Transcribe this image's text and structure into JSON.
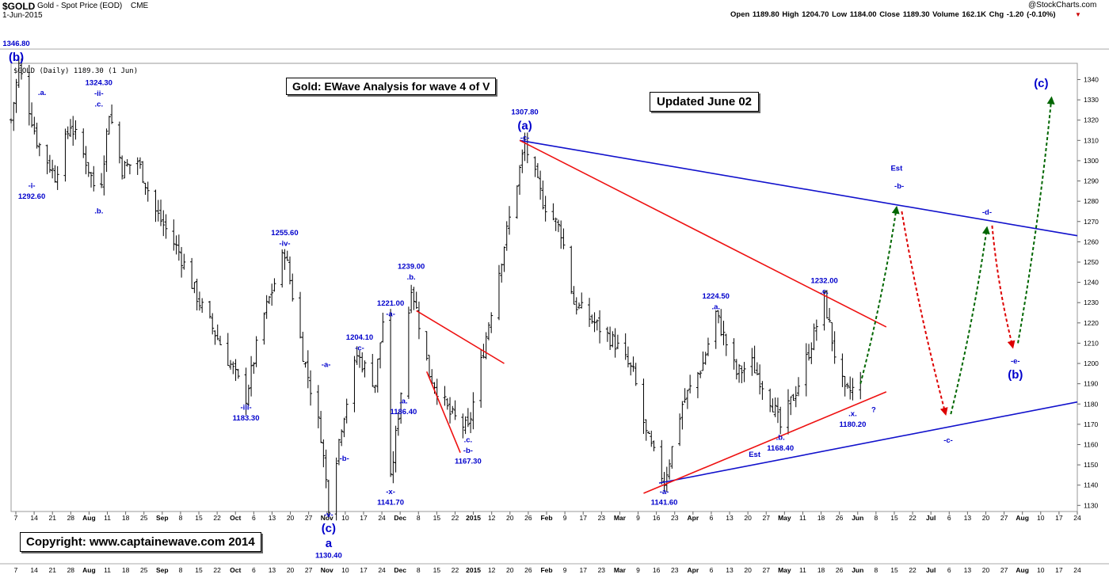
{
  "header": {
    "symbol": "$GOLD",
    "description": "Gold - Spot Price (EOD)",
    "exchange": "CME",
    "date": "1-Jun-2015",
    "brand": "@StockCharts.com",
    "stats": "Open 1189.80  High 1204.70  Low 1184.00  Close 1189.30  Volume 162.1K  Chg -1.20 (-0.10%)",
    "down_marker": "▼",
    "legend": "$GOLD (Daily) 1189.30 (1 Jun)"
  },
  "textboxes": {
    "title": "Gold: EWave Analysis for wave 4 of V",
    "updated": "Updated June 02",
    "copyright": "Copyright:    www.captainewave.com 2014"
  },
  "colors": {
    "candles": "#000000",
    "wave_labels": "#0000cc",
    "red_lines": "#ee1111",
    "blue_lines": "#1111cc",
    "projection_up": "#006600",
    "projection_down": "#dd0000"
  },
  "chart_data": {
    "type": "ohlc",
    "ylim": [
      1127,
      1348
    ],
    "yticks": [
      1130,
      1140,
      1150,
      1160,
      1170,
      1180,
      1190,
      1200,
      1210,
      1220,
      1230,
      1240,
      1250,
      1260,
      1270,
      1280,
      1290,
      1300,
      1310,
      1320,
      1330,
      1340
    ],
    "xticks": [
      "7",
      "14",
      "21",
      "28",
      "Aug",
      "11",
      "18",
      "25",
      "Sep",
      "8",
      "15",
      "22",
      "Oct",
      "6",
      "13",
      "20",
      "27",
      "Nov",
      "10",
      "17",
      "24",
      "Dec",
      "8",
      "15",
      "22",
      "2015",
      "12",
      "20",
      "26",
      "Feb",
      "9",
      "17",
      "23",
      "Mar",
      "9",
      "16",
      "23",
      "Apr",
      "6",
      "13",
      "20",
      "27",
      "May",
      "11",
      "18",
      "26",
      "Jun",
      "8",
      "15",
      "22",
      "Jul",
      "6",
      "13",
      "20",
      "27",
      "Aug",
      "10",
      "17",
      "24"
    ],
    "price_path": [
      [
        "2014-07-07",
        1320
      ],
      [
        "2014-07-10",
        1346.8
      ],
      [
        "2014-07-17",
        1310
      ],
      [
        "2014-07-24",
        1292.6
      ],
      [
        "2014-07-30",
        1318
      ],
      [
        "2014-08-05",
        1300
      ],
      [
        "2014-08-10",
        1280
      ],
      [
        "2014-08-14",
        1324.3
      ],
      [
        "2014-08-19",
        1296
      ],
      [
        "2014-08-25",
        1300
      ],
      [
        "2014-09-01",
        1275
      ],
      [
        "2014-09-10",
        1255
      ],
      [
        "2014-09-18",
        1230
      ],
      [
        "2014-09-26",
        1210
      ],
      [
        "2014-10-06",
        1183.3
      ],
      [
        "2014-10-12",
        1220
      ],
      [
        "2014-10-21",
        1255.6
      ],
      [
        "2014-10-28",
        1205
      ],
      [
        "2014-11-04",
        1165
      ],
      [
        "2014-11-07",
        1130.4
      ],
      [
        "2014-11-12",
        1170
      ],
      [
        "2014-11-18",
        1204.1
      ],
      [
        "2014-11-25",
        1190
      ],
      [
        "2014-11-28",
        1221
      ],
      [
        "2014-12-01",
        1141.7
      ],
      [
        "2014-12-05",
        1186.4
      ],
      [
        "2014-12-09",
        1239
      ],
      [
        "2014-12-16",
        1195
      ],
      [
        "2014-12-24",
        1175
      ],
      [
        "2014-12-31",
        1167.3
      ],
      [
        "2015-01-08",
        1220
      ],
      [
        "2015-01-15",
        1265
      ],
      [
        "2015-01-22",
        1307.8
      ],
      [
        "2015-01-29",
        1280
      ],
      [
        "2015-02-05",
        1265
      ],
      [
        "2015-02-10",
        1230
      ],
      [
        "2015-02-18",
        1220
      ],
      [
        "2015-02-26",
        1210
      ],
      [
        "2015-03-05",
        1195
      ],
      [
        "2015-03-10",
        1165
      ],
      [
        "2015-03-17",
        1141.6
      ],
      [
        "2015-03-24",
        1180
      ],
      [
        "2015-04-01",
        1200
      ],
      [
        "2015-04-06",
        1224.5
      ],
      [
        "2015-04-14",
        1195
      ],
      [
        "2015-04-20",
        1200
      ],
      [
        "2015-04-28",
        1180
      ],
      [
        "2015-05-01",
        1168.4
      ],
      [
        "2015-05-08",
        1190
      ],
      [
        "2015-05-13",
        1210
      ],
      [
        "2015-05-18",
        1232
      ],
      [
        "2015-05-22",
        1205
      ],
      [
        "2015-05-26",
        1185
      ],
      [
        "2015-06-01",
        1189.3
      ]
    ],
    "wave_labels": [
      {
        "date": "2014-07-09",
        "price": 1346.8,
        "lines": [
          "1346.80",
          "(b)"
        ],
        "pos": "above",
        "big": true
      },
      {
        "date": "2014-07-19",
        "price": 1330,
        "lines": [
          ".a."
        ],
        "pos": "above"
      },
      {
        "date": "2014-07-15",
        "price": 1292.6,
        "lines": [
          "-i-",
          "1292.60"
        ],
        "pos": "below"
      },
      {
        "date": "2014-08-10",
        "price": 1324.3,
        "lines": [
          "1324.30",
          "-ii-",
          ".c."
        ],
        "pos": "above"
      },
      {
        "date": "2014-08-10",
        "price": 1280,
        "lines": [
          ".b."
        ],
        "pos": "below"
      },
      {
        "date": "2014-10-06",
        "price": 1183.3,
        "lines": [
          "-iii-",
          "1183.30"
        ],
        "pos": "below"
      },
      {
        "date": "2014-10-21",
        "price": 1255.6,
        "lines": [
          "1255.60",
          "-iv-"
        ],
        "pos": "above"
      },
      {
        "date": "2014-11-07",
        "price": 1130.4,
        "lines": [
          "-v-",
          "(c)",
          "a",
          "1130.40"
        ],
        "pos": "below",
        "big": true
      },
      {
        "date": "2014-11-06",
        "price": 1196,
        "lines": [
          "-a-"
        ],
        "pos": "above"
      },
      {
        "date": "2014-11-10",
        "price": 1152,
        "lines": [
          "-b-"
        ],
        "pos": "right"
      },
      {
        "date": "2014-11-19",
        "price": 1204.1,
        "lines": [
          "1204.10",
          "-c-"
        ],
        "pos": "above"
      },
      {
        "date": "2014-12-01",
        "price": 1221,
        "lines": [
          "1221.00",
          "-a-"
        ],
        "pos": "above"
      },
      {
        "date": "2014-12-01",
        "price": 1141.7,
        "lines": [
          "-x-",
          "1141.70"
        ],
        "pos": "below"
      },
      {
        "date": "2014-12-06",
        "price": 1186.4,
        "lines": [
          ".a.",
          "1186.40"
        ],
        "pos": "below"
      },
      {
        "date": "2014-12-09",
        "price": 1239,
        "lines": [
          "1239.00",
          ".b."
        ],
        "pos": "above"
      },
      {
        "date": "2014-12-31",
        "price": 1167.3,
        "lines": [
          ".c.",
          "-b-",
          "1167.30"
        ],
        "pos": "below"
      },
      {
        "date": "2015-01-22",
        "price": 1307.8,
        "lines": [
          "1307.80",
          "(a)",
          "-c-"
        ],
        "pos": "above",
        "big": true
      },
      {
        "date": "2015-03-17",
        "price": 1141.6,
        "lines": [
          "-a-",
          "1141.60"
        ],
        "pos": "below"
      },
      {
        "date": "2015-04-06",
        "price": 1224.5,
        "lines": [
          "1224.50",
          ".a."
        ],
        "pos": "above"
      },
      {
        "date": "2015-05-01",
        "price": 1168.4,
        "lines": [
          ".b.",
          "1168.40"
        ],
        "pos": "below"
      },
      {
        "date": "2015-05-18",
        "price": 1232,
        "lines": [
          "1232.00",
          ".c."
        ],
        "pos": "above"
      },
      {
        "date": "2015-05-29",
        "price": 1180.2,
        "lines": [
          ".x.",
          "1180.20"
        ],
        "pos": "below"
      },
      {
        "date": "2015-06-04",
        "price": 1176,
        "lines": [
          "?"
        ],
        "pos": "right"
      },
      {
        "date": "2015-06-16",
        "price": 1284,
        "lines": [
          "-b-"
        ],
        "pos": "above"
      },
      {
        "date": "2015-07-05",
        "price": 1167,
        "lines": [
          "-c-"
        ],
        "pos": "below"
      },
      {
        "date": "2015-07-20",
        "price": 1271,
        "lines": [
          "-d-"
        ],
        "pos": "above"
      },
      {
        "date": "2015-07-31",
        "price": 1206,
        "lines": [
          "-e-",
          "(b)"
        ],
        "pos": "below",
        "big": true
      },
      {
        "date": "2015-08-10",
        "price": 1334,
        "lines": [
          "(c)"
        ],
        "pos": "above",
        "big": true
      },
      {
        "date": "2015-06-15",
        "price": 1295,
        "lines": [
          "Est"
        ],
        "pos": "text"
      },
      {
        "date": "2015-04-21",
        "price": 1154,
        "lines": [
          "Est"
        ],
        "pos": "text"
      }
    ],
    "trend_lines": [
      {
        "color": "#1111cc",
        "from": [
          "2015-01-20",
          1310
        ],
        "to": [
          "2015-08-24",
          1263
        ]
      },
      {
        "color": "#1111cc",
        "from": [
          "2015-03-15",
          1141
        ],
        "to": [
          "2015-08-24",
          1181
        ]
      },
      {
        "color": "#ee1111",
        "from": [
          "2015-01-20",
          1310
        ],
        "to": [
          "2015-06-11",
          1218
        ]
      },
      {
        "color": "#ee1111",
        "from": [
          "2015-03-09",
          1136
        ],
        "to": [
          "2015-06-11",
          1186
        ]
      },
      {
        "color": "#ee1111",
        "from": [
          "2014-12-11",
          1226
        ],
        "to": [
          "2015-01-14",
          1200
        ]
      },
      {
        "color": "#ee1111",
        "from": [
          "2014-12-15",
          1196
        ],
        "to": [
          "2014-12-28",
          1156
        ]
      }
    ],
    "projections": [
      {
        "color": "#006600",
        "from": [
          "2015-06-01",
          1190
        ],
        "to": [
          "2015-06-15",
          1277
        ]
      },
      {
        "color": "#dd0000",
        "from": [
          "2015-06-17",
          1275
        ],
        "to": [
          "2015-07-04",
          1175
        ]
      },
      {
        "color": "#006600",
        "from": [
          "2015-07-06",
          1175
        ],
        "to": [
          "2015-07-20",
          1267
        ]
      },
      {
        "color": "#dd0000",
        "from": [
          "2015-07-22",
          1268
        ],
        "to": [
          "2015-07-30",
          1208
        ]
      },
      {
        "color": "#006600",
        "from": [
          "2015-08-01",
          1210
        ],
        "to": [
          "2015-08-14",
          1331
        ]
      }
    ]
  }
}
